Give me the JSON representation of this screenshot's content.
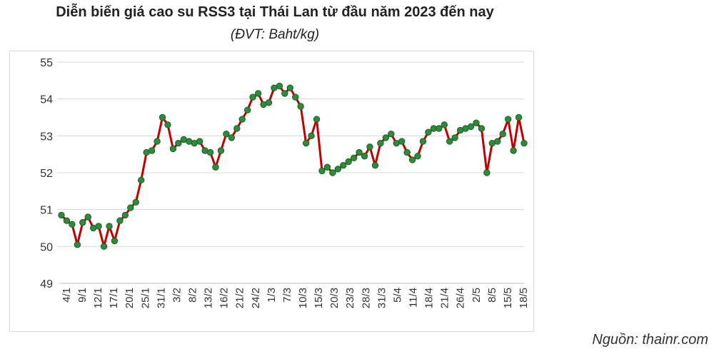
{
  "title": "Diễn biến giá cao su RSS3 tại Thái Lan từ đầu năm 2023 đến nay",
  "subtitle": "(ĐVT: Baht/kg)",
  "source": "Nguồn: thainr.com",
  "colors": {
    "line": "#c00000",
    "marker_fill": "#2e8b3c",
    "marker_stroke": "#1f5e27",
    "grid": "#d9d9d9",
    "text": "#333333"
  },
  "chart_data": {
    "type": "line",
    "title": "Diễn biến giá cao su RSS3 tại Thái Lan từ đầu năm 2023 đến nay",
    "subtitle": "(ĐVT: Baht/kg)",
    "xlabel": "",
    "ylabel": "",
    "ylim": [
      49,
      55
    ],
    "yticks": [
      49,
      50,
      51,
      52,
      53,
      54,
      55
    ],
    "grid": "horizontal",
    "xtick_labels": [
      "4/1",
      "9/1",
      "12/1",
      "17/1",
      "20/1",
      "25/1",
      "31/1",
      "3/2",
      "8/2",
      "13/2",
      "16/2",
      "21/2",
      "24/2",
      "1/3",
      "7/3",
      "10/3",
      "15/3",
      "20/3",
      "23/3",
      "28/3",
      "31/3",
      "5/4",
      "11/4",
      "18/4",
      "21/4",
      "26/4",
      "2/5",
      "8/5",
      "15/5",
      "18/5"
    ],
    "values": [
      50.85,
      50.7,
      50.6,
      50.05,
      50.65,
      50.8,
      50.5,
      50.55,
      50.0,
      50.55,
      50.15,
      50.7,
      50.85,
      51.05,
      51.2,
      51.8,
      52.55,
      52.6,
      52.85,
      53.5,
      53.3,
      52.65,
      52.8,
      52.9,
      52.85,
      52.8,
      52.85,
      52.6,
      52.55,
      52.15,
      52.6,
      53.05,
      52.95,
      53.2,
      53.45,
      53.7,
      54.05,
      54.15,
      53.85,
      53.9,
      54.3,
      54.35,
      54.15,
      54.3,
      54.05,
      53.8,
      52.8,
      53.0,
      53.45,
      52.05,
      52.15,
      52.0,
      52.1,
      52.2,
      52.3,
      52.4,
      52.55,
      52.45,
      52.7,
      52.2,
      52.8,
      52.95,
      53.05,
      52.8,
      52.85,
      52.55,
      52.35,
      52.45,
      52.85,
      53.1,
      53.2,
      53.2,
      53.3,
      52.85,
      52.95,
      53.15,
      53.2,
      53.25,
      53.35,
      53.2,
      52.0,
      52.8,
      52.85,
      53.05,
      53.45,
      52.6,
      53.5,
      52.8
    ]
  }
}
